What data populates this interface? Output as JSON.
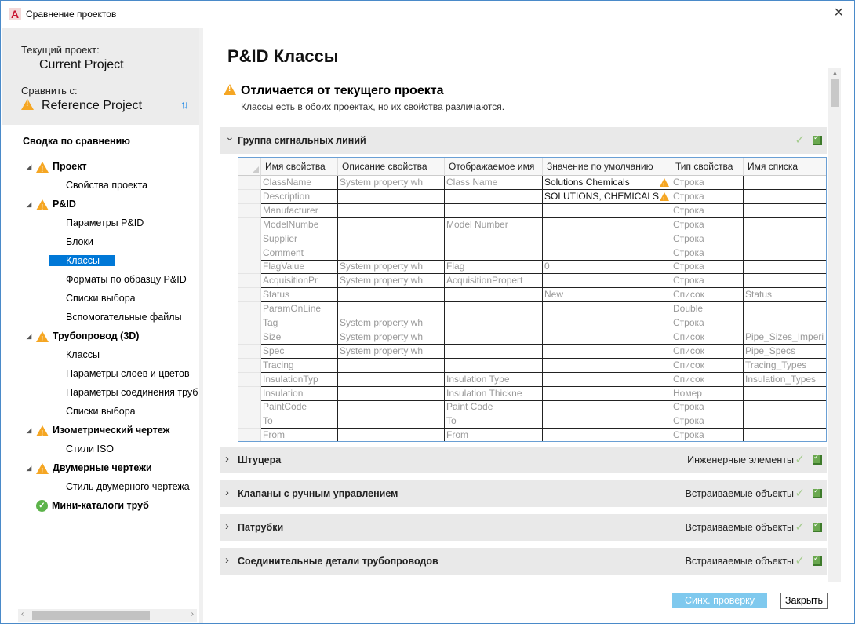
{
  "window": {
    "title": "Сравнение проектов",
    "app_icon": "autocad-a-icon",
    "close": "×"
  },
  "sidebar": {
    "current_label": "Текущий проект:",
    "current_project": "Current Project",
    "compare_label": "Сравнить с:",
    "reference_project": "Reference Project",
    "summary_title": "Сводка по сравнению",
    "tree": [
      {
        "label": "Проект",
        "level": 0,
        "status": "warning"
      },
      {
        "label": "Свойства проекта",
        "level": 1
      },
      {
        "label": "P&ID",
        "level": 0,
        "status": "warning"
      },
      {
        "label": "Параметры P&ID",
        "level": 1
      },
      {
        "label": "Блоки",
        "level": 1
      },
      {
        "label": "Классы",
        "level": 1,
        "selected": true
      },
      {
        "label": "Форматы по образцу P&ID",
        "level": 1
      },
      {
        "label": "Списки выбора",
        "level": 1
      },
      {
        "label": "Вспомогательные файлы",
        "level": 1
      },
      {
        "label": "Трубопровод (3D)",
        "level": 0,
        "status": "warning"
      },
      {
        "label": "Классы",
        "level": 1
      },
      {
        "label": "Параметры слоев и цветов",
        "level": 1
      },
      {
        "label": "Параметры соединения труб",
        "level": 1
      },
      {
        "label": "Списки выбора",
        "level": 1
      },
      {
        "label": "Изометрический чертеж",
        "level": 0,
        "status": "warning"
      },
      {
        "label": "Стили ISO",
        "level": 1
      },
      {
        "label": "Двумерные чертежи",
        "level": 0,
        "status": "warning"
      },
      {
        "label": "Стиль двумерного чертежа",
        "level": 1
      },
      {
        "label": "Мини-каталоги труб",
        "level": 0,
        "status": "ok"
      }
    ]
  },
  "main": {
    "title": "P&ID Классы",
    "diff_title": "Отличается от текущего проекта",
    "diff_desc": "Классы есть в обоих проектах, но их свойства различаются.",
    "sections": [
      {
        "name": "Группа сигнальных линий",
        "category": "",
        "expanded": true
      },
      {
        "name": "Штуцера",
        "category": "Инженерные элементы"
      },
      {
        "name": "Клапаны с ручным управлением",
        "category": "Встраиваемые объекты"
      },
      {
        "name": "Патрубки",
        "category": "Встраиваемые объекты"
      },
      {
        "name": "Соединительные детали трубопроводов",
        "category": "Встраиваемые объекты"
      }
    ],
    "table": {
      "columns": [
        "Имя свойства",
        "Описание свойства",
        "Отображаемое имя",
        "Значение по умолчанию",
        "Тип свойства",
        "Имя списка"
      ],
      "rows": [
        [
          "ClassName",
          "System property wh",
          "Class Name",
          "Solutions Chemicals",
          "Строка",
          ""
        ],
        [
          "Description",
          "",
          "",
          "SOLUTIONS, CHEMICALS",
          "Строка",
          ""
        ],
        [
          "Manufacturer",
          "",
          "",
          "",
          "Строка",
          ""
        ],
        [
          "ModelNumbe",
          "",
          "Model Number",
          "",
          "Строка",
          ""
        ],
        [
          "Supplier",
          "",
          "",
          "",
          "Строка",
          ""
        ],
        [
          "Comment",
          "",
          "",
          "",
          "Строка",
          ""
        ],
        [
          "FlagValue",
          "System property wh",
          "Flag",
          "0",
          "Строка",
          ""
        ],
        [
          "AcquisitionPr",
          "System property wh",
          "AcquisitionPropert",
          "",
          "Строка",
          ""
        ],
        [
          "Status",
          "",
          "",
          "New",
          "Список",
          "Status"
        ],
        [
          "ParamOnLine",
          "",
          "",
          "",
          "Double",
          ""
        ],
        [
          "Tag",
          "System property wh",
          "",
          "",
          "Строка",
          ""
        ],
        [
          "Size",
          "System property wh",
          "",
          "",
          "Список",
          "Pipe_Sizes_Imperi"
        ],
        [
          "Spec",
          "System property wh",
          "",
          "",
          "Список",
          "Pipe_Specs"
        ],
        [
          "Tracing",
          "",
          "",
          "",
          "Список",
          "Tracing_Types"
        ],
        [
          "InsulationTyp",
          "",
          "Insulation Type",
          "",
          "Список",
          "Insulation_Types"
        ],
        [
          "Insulation",
          "",
          "Insulation Thickne",
          "",
          "Номер",
          ""
        ],
        [
          "PaintCode",
          "",
          "Paint Code",
          "",
          "Строка",
          ""
        ],
        [
          "To",
          "",
          "To",
          "",
          "Строка",
          ""
        ],
        [
          "From",
          "",
          "From",
          "",
          "Строка",
          ""
        ]
      ],
      "changed_rows": [
        0,
        1
      ]
    }
  },
  "footer": {
    "sync_label": "Синх. проверку",
    "close_label": "Закрыть"
  },
  "colors": {
    "accent": "#0078d7",
    "warning": "#f5a623",
    "ok": "#5cb34a",
    "sync_button": "#7fc9ee"
  }
}
